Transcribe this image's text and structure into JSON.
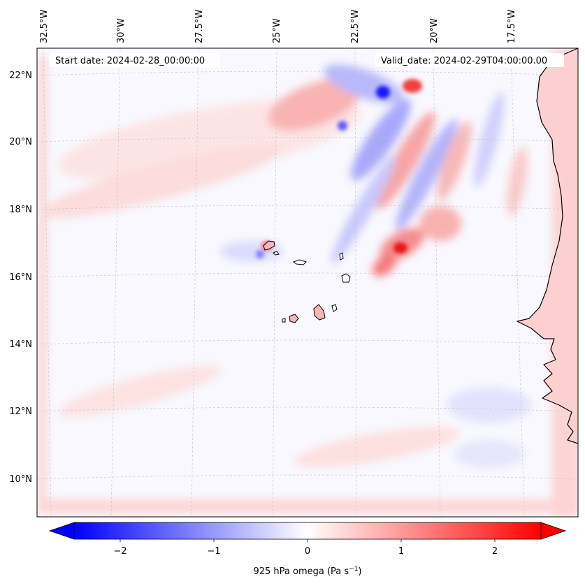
{
  "map": {
    "start_date": "Start date: 2024-02-28_00:00:00",
    "valid_date": "Valid_date: 2024-02-29T04:00:00.00",
    "lon_labels": [
      "32.5°W",
      "30°W",
      "27.5°W",
      "25°W",
      "22.5°W",
      "20°W",
      "17.5°W"
    ],
    "lat_labels": [
      "22°N",
      "20°N",
      "18°N",
      "16°N",
      "14°N",
      "12°N",
      "10°N"
    ],
    "colorbar": {
      "ticks": [
        "−2",
        "−1",
        "0",
        "1",
        "2"
      ],
      "label_main": "925 hPa omega (Pa s",
      "label_sup": "−1",
      "label_end": ")",
      "range": [
        -2.6,
        2.6
      ],
      "colormap": "bwr",
      "extend": "both"
    },
    "colors": {
      "negative": "#0000ff",
      "zero": "#ffffff",
      "positive": "#ff0000",
      "coast": "#000000",
      "grid": "#c8c8c8"
    }
  }
}
